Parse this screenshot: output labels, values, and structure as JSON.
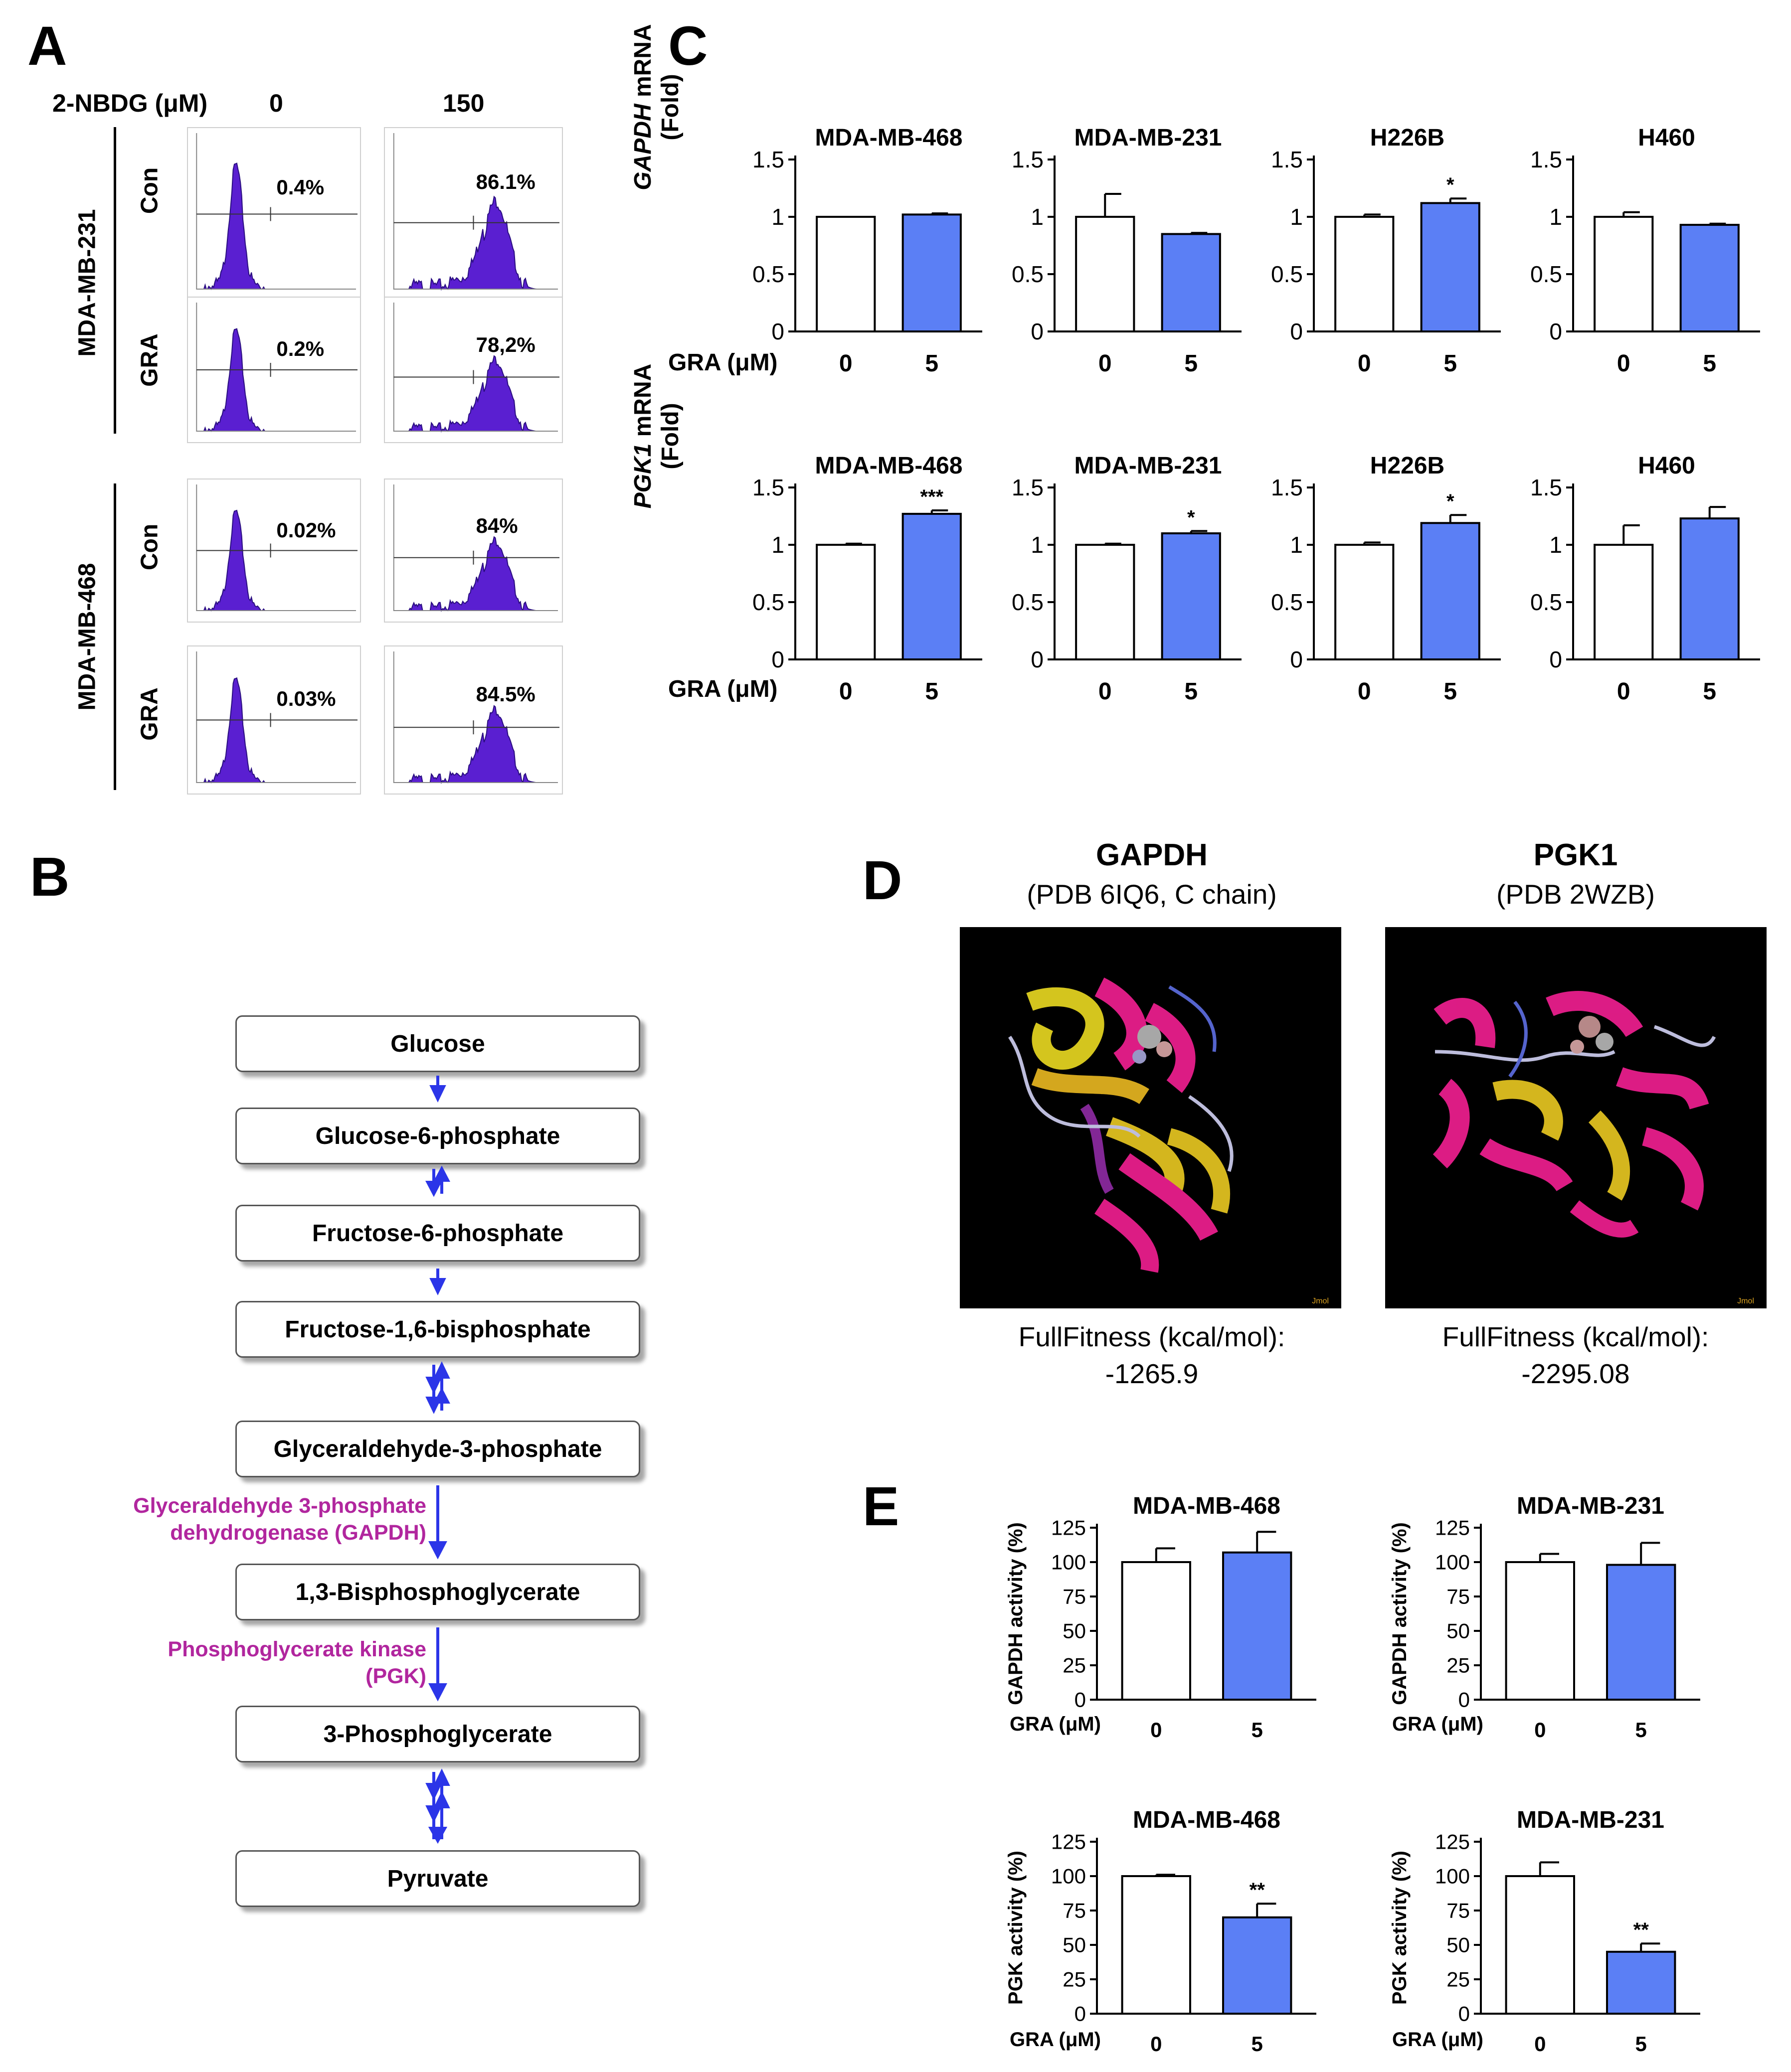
{
  "panel_a": {
    "letter": "A",
    "concentration_label": "2-NBDG (μM)",
    "concentrations": [
      "0",
      "150"
    ],
    "groups": [
      {
        "cell_line": "MDA-MB-231",
        "rows": [
          {
            "treatment": "Con",
            "percentages": [
              "0.4%",
              "86.1%"
            ]
          },
          {
            "treatment": "GRA",
            "percentages": [
              "0.2%",
              "78,2%"
            ]
          }
        ]
      },
      {
        "cell_line": "MDA-MB-468",
        "rows": [
          {
            "treatment": "Con",
            "percentages": [
              "0.02%",
              "84%"
            ]
          },
          {
            "treatment": "GRA",
            "percentages": [
              "0.03%",
              "84.5%"
            ]
          }
        ]
      }
    ],
    "histogram_color": "#5a1fd1"
  },
  "panel_b": {
    "letter": "B",
    "metabolites": [
      "Glucose",
      "Glucose-6-phosphate",
      "Fructose-6-phosphate",
      "Fructose-1,6-bisphosphate",
      "Glyceraldehyde-3-phosphate",
      "1,3-Bisphosphoglycerate",
      "3-Phosphoglycerate",
      "Pyruvate"
    ],
    "enzymes": [
      {
        "line1": "Glyceraldehyde 3-phosphate",
        "line2": "dehydrogenase (GAPDH)"
      },
      {
        "line1": "Phosphoglycerate kinase",
        "line2": "(PGK)"
      }
    ],
    "arrow_color": "#2b35e8",
    "enzyme_color": "#b1269e"
  },
  "panel_c": {
    "letter": "C",
    "x_label": "GRA (μM)",
    "rows": [
      {
        "ylabel_gene": "GAPDH",
        "ylabel_rest": " mRNA",
        "ylabel_line2": "(Fold)"
      },
      {
        "ylabel_gene": "PGK1",
        "ylabel_rest": " mRNA",
        "ylabel_line2": "(Fold)"
      }
    ]
  },
  "panel_d": {
    "letter": "D",
    "proteins": [
      {
        "name": "GAPDH",
        "pdb": "(PDB 6IQ6, C chain)",
        "fitness_label": "FullFitness (kcal/mol):",
        "fitness_value": "-1265.9",
        "watermark": "Jmol"
      },
      {
        "name": "PGK1",
        "pdb": "(PDB 2WZB)",
        "fitness_label": "FullFitness (kcal/mol):",
        "fitness_value": "-2295.08",
        "watermark": "Jmol"
      }
    ]
  },
  "panel_e": {
    "letter": "E",
    "x_label": "GRA (μM)"
  },
  "chart_data": [
    {
      "id": "c-gapdh-468",
      "type": "bar",
      "title": "MDA-MB-468",
      "ylabel": "GAPDH mRNA (Fold)",
      "categories": [
        "0",
        "5"
      ],
      "values": [
        1.0,
        1.02
      ],
      "errors": [
        0.0,
        0.01
      ],
      "significance": [
        "",
        ""
      ],
      "ylim": [
        0,
        1.5
      ],
      "yticks": [
        "0",
        "0.5",
        "1",
        "1.5"
      ],
      "colors": [
        "#ffffff",
        "#5b7ff5"
      ]
    },
    {
      "id": "c-gapdh-231",
      "type": "bar",
      "title": "MDA-MB-231",
      "ylabel": "GAPDH mRNA (Fold)",
      "categories": [
        "0",
        "5"
      ],
      "values": [
        1.0,
        0.85
      ],
      "errors": [
        0.2,
        0.01
      ],
      "significance": [
        "",
        ""
      ],
      "ylim": [
        0,
        1.5
      ],
      "yticks": [
        "0",
        "0.5",
        "1",
        "1.5"
      ],
      "colors": [
        "#ffffff",
        "#5b7ff5"
      ]
    },
    {
      "id": "c-gapdh-h226b",
      "type": "bar",
      "title": "H226B",
      "ylabel": "GAPDH mRNA (Fold)",
      "categories": [
        "0",
        "5"
      ],
      "values": [
        1.0,
        1.12
      ],
      "errors": [
        0.02,
        0.04
      ],
      "significance": [
        "",
        "*"
      ],
      "ylim": [
        0,
        1.5
      ],
      "yticks": [
        "0",
        "0.5",
        "1",
        "1.5"
      ],
      "colors": [
        "#ffffff",
        "#5b7ff5"
      ]
    },
    {
      "id": "c-gapdh-h460",
      "type": "bar",
      "title": "H460",
      "ylabel": "GAPDH mRNA (Fold)",
      "categories": [
        "0",
        "5"
      ],
      "values": [
        1.0,
        0.93
      ],
      "errors": [
        0.04,
        0.01
      ],
      "significance": [
        "",
        ""
      ],
      "ylim": [
        0,
        1.5
      ],
      "yticks": [
        "0",
        "0.5",
        "1",
        "1.5"
      ],
      "colors": [
        "#ffffff",
        "#5b7ff5"
      ]
    },
    {
      "id": "c-pgk1-468",
      "type": "bar",
      "title": "MDA-MB-468",
      "ylabel": "PGK1 mRNA (Fold)",
      "categories": [
        "0",
        "5"
      ],
      "values": [
        1.0,
        1.27
      ],
      "errors": [
        0.01,
        0.03
      ],
      "significance": [
        "",
        "***"
      ],
      "ylim": [
        0,
        1.5
      ],
      "yticks": [
        "0",
        "0.5",
        "1",
        "1.5"
      ],
      "colors": [
        "#ffffff",
        "#5b7ff5"
      ]
    },
    {
      "id": "c-pgk1-231",
      "type": "bar",
      "title": "MDA-MB-231",
      "ylabel": "PGK1 mRNA (Fold)",
      "categories": [
        "0",
        "5"
      ],
      "values": [
        1.0,
        1.1
      ],
      "errors": [
        0.01,
        0.02
      ],
      "significance": [
        "",
        "*"
      ],
      "ylim": [
        0,
        1.5
      ],
      "yticks": [
        "0",
        "0.5",
        "1",
        "1.5"
      ],
      "colors": [
        "#ffffff",
        "#5b7ff5"
      ]
    },
    {
      "id": "c-pgk1-h226b",
      "type": "bar",
      "title": "H226B",
      "ylabel": "PGK1 mRNA (Fold)",
      "categories": [
        "0",
        "5"
      ],
      "values": [
        1.0,
        1.19
      ],
      "errors": [
        0.02,
        0.07
      ],
      "significance": [
        "",
        "*"
      ],
      "ylim": [
        0,
        1.5
      ],
      "yticks": [
        "0",
        "0.5",
        "1",
        "1.5"
      ],
      "colors": [
        "#ffffff",
        "#5b7ff5"
      ]
    },
    {
      "id": "c-pgk1-h460",
      "type": "bar",
      "title": "H460",
      "ylabel": "PGK1 mRNA (Fold)",
      "categories": [
        "0",
        "5"
      ],
      "values": [
        1.0,
        1.23
      ],
      "errors": [
        0.17,
        0.1
      ],
      "significance": [
        "",
        ""
      ],
      "ylim": [
        0,
        1.5
      ],
      "yticks": [
        "0",
        "0.5",
        "1",
        "1.5"
      ],
      "colors": [
        "#ffffff",
        "#5b7ff5"
      ]
    },
    {
      "id": "e-gapdh-468",
      "type": "bar",
      "title": "MDA-MB-468",
      "ylabel": "GAPDH activity (%)",
      "categories": [
        "0",
        "5"
      ],
      "values": [
        100,
        107
      ],
      "errors": [
        10,
        15
      ],
      "significance": [
        "",
        ""
      ],
      "ylim": [
        0,
        125
      ],
      "yticks": [
        "0",
        "25",
        "50",
        "75",
        "100",
        "125"
      ],
      "colors": [
        "#ffffff",
        "#5b7ff5"
      ]
    },
    {
      "id": "e-gapdh-231",
      "type": "bar",
      "title": "MDA-MB-231",
      "ylabel": "GAPDH activity (%)",
      "categories": [
        "0",
        "5"
      ],
      "values": [
        100,
        98
      ],
      "errors": [
        6,
        16
      ],
      "significance": [
        "",
        ""
      ],
      "ylim": [
        0,
        125
      ],
      "yticks": [
        "0",
        "25",
        "50",
        "75",
        "100",
        "125"
      ],
      "colors": [
        "#ffffff",
        "#5b7ff5"
      ]
    },
    {
      "id": "e-pgk-468",
      "type": "bar",
      "title": "MDA-MB-468",
      "ylabel": "PGK activity (%)",
      "categories": [
        "0",
        "5"
      ],
      "values": [
        100,
        70
      ],
      "errors": [
        1,
        10
      ],
      "significance": [
        "",
        "**"
      ],
      "ylim": [
        0,
        125
      ],
      "yticks": [
        "0",
        "25",
        "50",
        "75",
        "100",
        "125"
      ],
      "colors": [
        "#ffffff",
        "#5b7ff5"
      ]
    },
    {
      "id": "e-pgk-231",
      "type": "bar",
      "title": "MDA-MB-231",
      "ylabel": "PGK activity (%)",
      "categories": [
        "0",
        "5"
      ],
      "values": [
        100,
        45
      ],
      "errors": [
        10,
        6
      ],
      "significance": [
        "",
        "**"
      ],
      "ylim": [
        0,
        125
      ],
      "yticks": [
        "0",
        "25",
        "50",
        "75",
        "100",
        "125"
      ],
      "colors": [
        "#ffffff",
        "#5b7ff5"
      ]
    }
  ]
}
